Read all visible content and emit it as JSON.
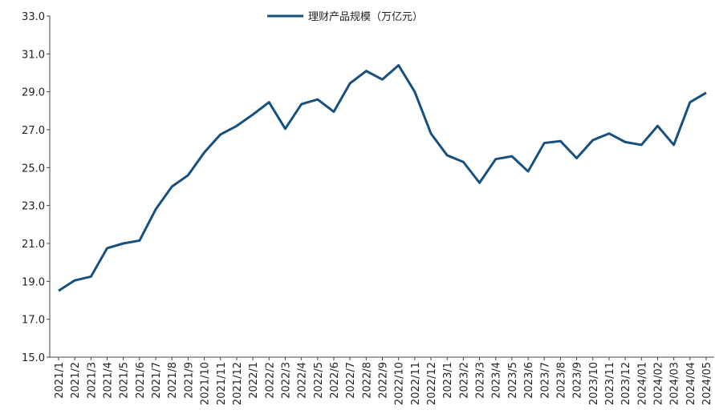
{
  "chart_data": {
    "type": "line",
    "categories": [
      "2021/1",
      "2021/2",
      "2021/3",
      "2021/4",
      "2021/5",
      "2021/6",
      "2021/7",
      "2021/8",
      "2021/9",
      "2021/10",
      "2021/11",
      "2021/12",
      "2022/1",
      "2022/2",
      "2022/3",
      "2022/4",
      "2022/5",
      "2022/6",
      "2022/7",
      "2022/8",
      "2022/9",
      "2022/10",
      "2022/11",
      "2022/12",
      "2023/1",
      "2023/2",
      "2023/3",
      "2023/4",
      "2023/5",
      "2023/6",
      "2023/7",
      "2023/8",
      "2023/9",
      "2023/10",
      "2023/11",
      "2023/12",
      "2024/01",
      "2024/02",
      "2024/03",
      "2024/04",
      "2024/05"
    ],
    "series": [
      {
        "name": "理财产品规模（万亿元）",
        "color": "#17507e",
        "values": [
          18.5,
          19.05,
          19.25,
          20.75,
          21.0,
          21.15,
          22.8,
          24.0,
          24.6,
          25.8,
          26.75,
          27.2,
          27.8,
          28.45,
          27.05,
          28.35,
          28.6,
          27.95,
          29.45,
          30.1,
          29.65,
          30.4,
          29.0,
          26.8,
          25.65,
          25.3,
          24.2,
          25.45,
          25.6,
          24.8,
          26.3,
          26.4,
          25.5,
          26.45,
          26.8,
          26.35,
          26.2,
          27.2,
          26.2,
          28.45,
          28.95
        ]
      }
    ],
    "ylim": [
      15,
      33
    ],
    "yticks": [
      {
        "value": 15,
        "label": "15.0"
      },
      {
        "value": 17,
        "label": "17.0"
      },
      {
        "value": 19,
        "label": "19.0"
      },
      {
        "value": 21,
        "label": "21.0"
      },
      {
        "value": 23,
        "label": "23.0"
      },
      {
        "value": 25,
        "label": "25.0"
      },
      {
        "value": 27,
        "label": "27.0"
      },
      {
        "value": 29,
        "label": "29.0"
      },
      {
        "value": 31,
        "label": "31.0"
      },
      {
        "value": 33,
        "label": "33.0"
      }
    ],
    "legend": "top"
  }
}
